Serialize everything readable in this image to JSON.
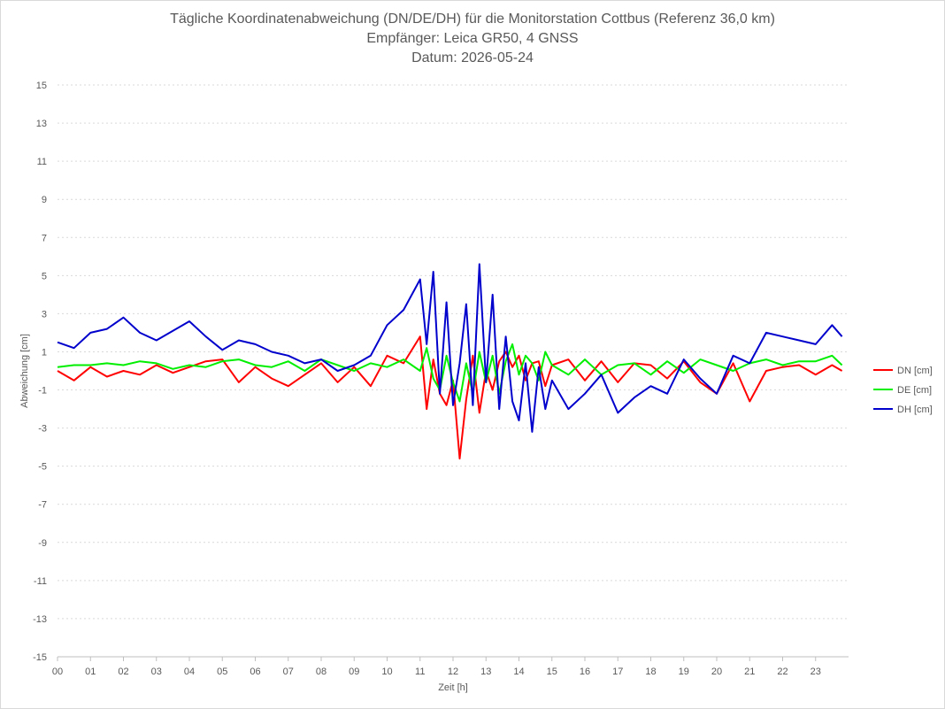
{
  "chart_data": {
    "type": "line",
    "title": "Tägliche Koordinatenabweichung (DN/DE/DH) für die Monitorstation Cottbus (Referenz 36,0 km)",
    "subtitle": "Empfänger: Leica GR50, 4 GNSS",
    "date_label": "Datum: 2026-05-24",
    "xlabel": "Zeit [h]",
    "ylabel": "Abweichung [cm]",
    "xlim": [
      0,
      24
    ],
    "ylim": [
      -15,
      15
    ],
    "x_ticks": [
      "00",
      "01",
      "02",
      "03",
      "04",
      "05",
      "06",
      "07",
      "08",
      "09",
      "10",
      "11",
      "12",
      "13",
      "14",
      "15",
      "16",
      "17",
      "18",
      "19",
      "20",
      "21",
      "22",
      "23"
    ],
    "y_ticks": [
      15,
      13,
      11,
      9,
      7,
      5,
      3,
      1,
      -1,
      -3,
      -5,
      -7,
      -9,
      -11,
      -13,
      -15
    ],
    "grid": true,
    "legend_position": "right",
    "x": [
      0.0,
      0.5,
      1.0,
      1.5,
      2.0,
      2.5,
      3.0,
      3.5,
      4.0,
      4.5,
      5.0,
      5.5,
      6.0,
      6.5,
      7.0,
      7.5,
      8.0,
      8.5,
      9.0,
      9.5,
      10.0,
      10.5,
      11.0,
      11.2,
      11.4,
      11.6,
      11.8,
      12.0,
      12.2,
      12.4,
      12.6,
      12.8,
      13.0,
      13.2,
      13.4,
      13.6,
      13.8,
      14.0,
      14.2,
      14.4,
      14.6,
      14.8,
      15.0,
      15.5,
      16.0,
      16.5,
      17.0,
      17.5,
      18.0,
      18.5,
      19.0,
      19.5,
      20.0,
      20.5,
      21.0,
      21.5,
      22.0,
      22.5,
      23.0,
      23.5,
      23.8
    ],
    "series": [
      {
        "name": "DN [cm]",
        "color": "#ff0000",
        "values": [
          0.0,
          -0.5,
          0.2,
          -0.3,
          0.0,
          -0.2,
          0.3,
          -0.1,
          0.2,
          0.5,
          0.6,
          -0.6,
          0.2,
          -0.4,
          -0.8,
          -0.2,
          0.4,
          -0.6,
          0.2,
          -0.8,
          0.8,
          0.4,
          1.8,
          -2.0,
          0.6,
          -1.2,
          -1.8,
          -0.5,
          -4.6,
          -1.5,
          0.8,
          -2.2,
          0.0,
          -1.0,
          0.5,
          1.0,
          0.2,
          0.8,
          -0.5,
          0.4,
          0.5,
          -0.8,
          0.3,
          0.6,
          -0.5,
          0.5,
          -0.6,
          0.4,
          0.3,
          -0.4,
          0.5,
          -0.6,
          -1.2,
          0.4,
          -1.6,
          0.0,
          0.2,
          0.3,
          -0.2,
          0.3,
          0.0
        ]
      },
      {
        "name": "DE [cm]",
        "color": "#00ee00",
        "values": [
          0.2,
          0.3,
          0.3,
          0.4,
          0.3,
          0.5,
          0.4,
          0.1,
          0.3,
          0.2,
          0.5,
          0.6,
          0.3,
          0.2,
          0.5,
          0.0,
          0.6,
          0.3,
          0.0,
          0.4,
          0.2,
          0.6,
          0.0,
          1.2,
          -0.4,
          -1.0,
          0.8,
          -0.6,
          -1.6,
          0.4,
          -1.2,
          1.0,
          -0.6,
          0.8,
          -1.2,
          0.5,
          1.4,
          -0.2,
          0.8,
          0.4,
          -0.5,
          1.0,
          0.3,
          -0.2,
          0.6,
          -0.2,
          0.3,
          0.4,
          -0.2,
          0.5,
          -0.1,
          0.6,
          0.3,
          0.0,
          0.4,
          0.6,
          0.3,
          0.5,
          0.5,
          0.8,
          0.3
        ]
      },
      {
        "name": "DH [cm]",
        "color": "#0000cc",
        "values": [
          1.5,
          1.2,
          2.0,
          2.2,
          2.8,
          2.0,
          1.6,
          2.1,
          2.6,
          1.8,
          1.1,
          1.6,
          1.4,
          1.0,
          0.8,
          0.4,
          0.6,
          0.0,
          0.3,
          0.8,
          2.4,
          3.2,
          4.8,
          1.4,
          5.2,
          -1.2,
          3.6,
          -1.8,
          0.4,
          3.5,
          -1.8,
          5.6,
          -0.6,
          4.0,
          -2.0,
          1.8,
          -1.6,
          -2.6,
          0.4,
          -3.2,
          0.2,
          -2.0,
          -0.5,
          -2.0,
          -1.2,
          -0.2,
          -2.2,
          -1.4,
          -0.8,
          -1.2,
          0.6,
          -0.4,
          -1.2,
          0.8,
          0.4,
          2.0,
          1.8,
          1.6,
          1.4,
          2.4,
          1.8
        ]
      }
    ]
  }
}
